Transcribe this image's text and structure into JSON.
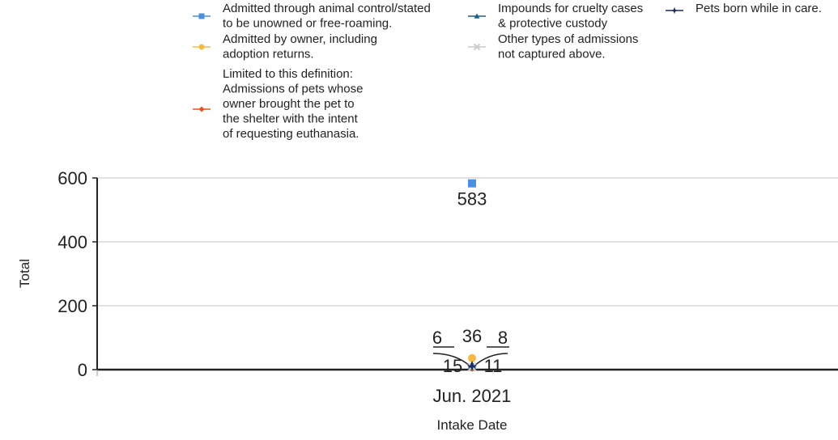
{
  "chart_data": {
    "type": "line",
    "title": "",
    "xlabel": "Intake Date",
    "ylabel": "Total",
    "categories": [
      "Jun. 2021"
    ],
    "yticks": [
      0,
      200,
      400,
      600
    ],
    "ylim": [
      0,
      600
    ],
    "grid": true,
    "legend_position": "top",
    "series": [
      {
        "name": "Admitted through animal control/stated to be unowned or free-roaming.",
        "legend_lines": [
          "Admitted through animal control/stated",
          "to be unowned or free-roaming."
        ],
        "color": "#4a90e2",
        "marker": "square",
        "values": [
          583
        ],
        "data_label": "583"
      },
      {
        "name": "Admitted by owner, including adoption returns.",
        "legend_lines": [
          "Admitted by owner, including",
          "adoption returns."
        ],
        "color": "#f5b942",
        "marker": "circle",
        "values": [
          36
        ],
        "data_label": "36"
      },
      {
        "name": "Limited to this definition: Admissions of pets whose owner brought the pet to the shelter with the intent of requesting euthanasia.",
        "legend_lines": [
          "Limited to this definition:",
          "Admissions of pets whose",
          "owner brought the pet to",
          "the shelter with the intent",
          "of requesting euthanasia."
        ],
        "color": "#e8531f",
        "marker": "diamond",
        "values": [
          6
        ],
        "data_label": "6"
      },
      {
        "name": "Impounds for cruelty cases & protective custody",
        "legend_lines": [
          "Impounds for cruelty cases",
          "& protective custody"
        ],
        "color": "#1f5f8b",
        "marker": "triangle",
        "values": [
          15
        ],
        "data_label": "15"
      },
      {
        "name": "Other types of admissions not captured above.",
        "legend_lines": [
          "Other types of admissions",
          "not captured above."
        ],
        "color": "#cccccc",
        "marker": "x",
        "values": [
          8
        ],
        "data_label": "8"
      },
      {
        "name": "Pets born while in care.",
        "legend_lines": [
          "Pets born while in care."
        ],
        "color": "#1a2b5e",
        "marker": "star",
        "values": [
          11
        ],
        "data_label": "11"
      }
    ]
  }
}
